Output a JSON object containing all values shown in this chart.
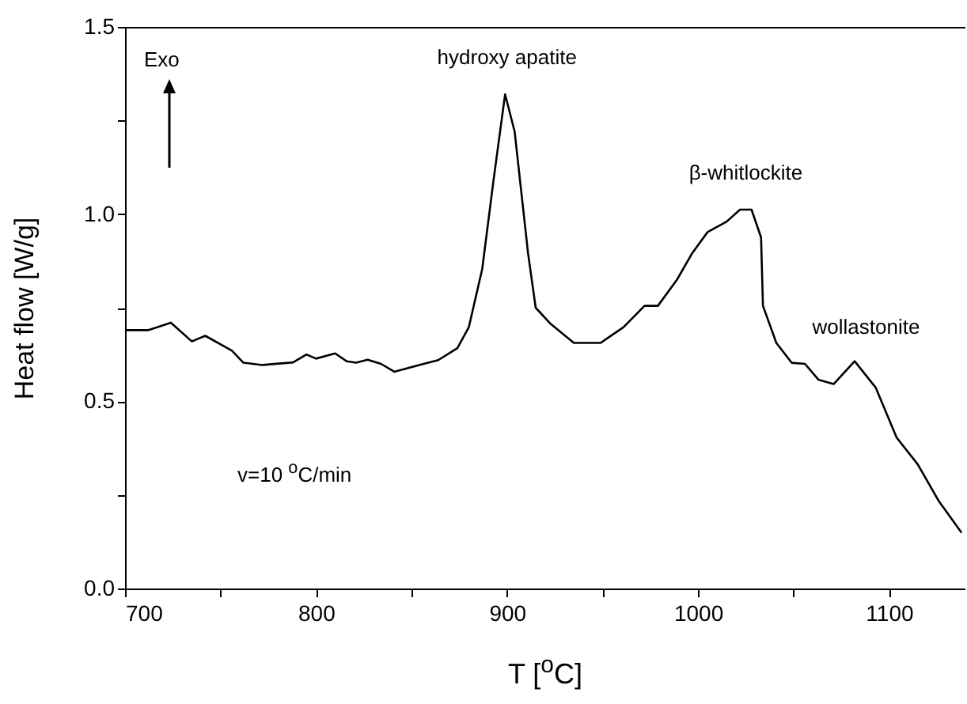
{
  "chart_data": {
    "type": "line",
    "xlabel": "T [$^{o}$C]",
    "ylabel": "Heat flow [W/g]",
    "xlim": [
      700,
      1140
    ],
    "ylim": [
      0,
      1.5
    ],
    "xticks": [
      700,
      {
        "value": 750,
        "label": null
      },
      800,
      {
        "value": 850,
        "label": null
      },
      900,
      {
        "value": 950,
        "label": null
      },
      1000,
      {
        "value": 1050,
        "label": null
      },
      1100
    ],
    "yticks": [
      {
        "value": 0,
        "label": "0.0"
      },
      {
        "value": 0.25,
        "label": null
      },
      0.5,
      {
        "value": 0.75,
        "label": null
      },
      {
        "value": 1,
        "label": "1.0"
      },
      {
        "value": 1.25,
        "label": null
      },
      1.5
    ],
    "series": [
      {
        "color": "#000000",
        "x": [
          700,
          712,
          724,
          735,
          742,
          756,
          762,
          772,
          788,
          795,
          800,
          810,
          816,
          821,
          827,
          834,
          841,
          854,
          864,
          874,
          880,
          887,
          893,
          899,
          904,
          911,
          915,
          923,
          935,
          949,
          961,
          972,
          979,
          989,
          997,
          1005,
          1015,
          1022,
          1028,
          1033,
          1034,
          1041,
          1049,
          1056,
          1063,
          1071,
          1082,
          1093,
          1104,
          1115,
          1126,
          1138
        ],
        "values": [
          0.69,
          0.69,
          0.71,
          0.66,
          0.675,
          0.635,
          0.603,
          0.597,
          0.604,
          0.625,
          0.614,
          0.628,
          0.607,
          0.603,
          0.611,
          0.6,
          0.579,
          0.597,
          0.61,
          0.642,
          0.698,
          0.853,
          1.093,
          1.32,
          1.22,
          0.896,
          0.75,
          0.706,
          0.656,
          0.656,
          0.698,
          0.755,
          0.755,
          0.825,
          0.896,
          0.952,
          0.98,
          1.012,
          1.012,
          0.938,
          0.755,
          0.656,
          0.603,
          0.6,
          0.558,
          0.546,
          0.607,
          0.537,
          0.403,
          0.332,
          0.234,
          0.149
        ]
      }
    ],
    "annotations": [
      "Exo",
      {
        "text": "hydroxy apatite",
        "x": 900,
        "y": 1.32
      },
      {
        "text": "β-whitlockite",
        "x": 1025,
        "y": 1.012
      },
      {
        "text": "wollastonite",
        "x": 1088,
        "y": 0.6
      },
      "v=10 $^{o}$C/min"
    ],
    "grid": false,
    "marker": "none",
    "line_style": "solid"
  }
}
